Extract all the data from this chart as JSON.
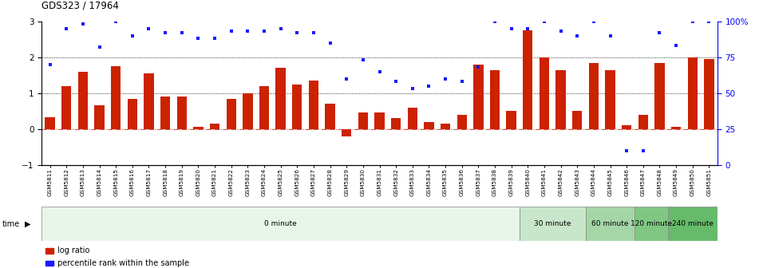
{
  "title": "GDS323 / 17964",
  "samples": [
    "GSM5811",
    "GSM5812",
    "GSM5813",
    "GSM5814",
    "GSM5815",
    "GSM5816",
    "GSM5817",
    "GSM5818",
    "GSM5819",
    "GSM5820",
    "GSM5821",
    "GSM5822",
    "GSM5823",
    "GSM5824",
    "GSM5825",
    "GSM5826",
    "GSM5827",
    "GSM5828",
    "GSM5829",
    "GSM5830",
    "GSM5831",
    "GSM5832",
    "GSM5833",
    "GSM5834",
    "GSM5835",
    "GSM5836",
    "GSM5837",
    "GSM5838",
    "GSM5839",
    "GSM5840",
    "GSM5841",
    "GSM5842",
    "GSM5843",
    "GSM5844",
    "GSM5845",
    "GSM5846",
    "GSM5847",
    "GSM5848",
    "GSM5849",
    "GSM5850",
    "GSM5851"
  ],
  "log_ratio": [
    0.32,
    1.2,
    1.6,
    0.65,
    1.75,
    0.85,
    1.55,
    0.9,
    0.9,
    0.05,
    0.15,
    0.85,
    1.0,
    1.2,
    1.7,
    1.25,
    1.35,
    0.7,
    -0.2,
    0.45,
    0.45,
    0.3,
    0.6,
    0.2,
    0.15,
    0.4,
    1.8,
    1.65,
    0.5,
    2.75,
    2.0,
    1.65,
    0.5,
    1.85,
    1.65,
    0.1,
    0.4,
    1.85,
    0.05,
    2.0,
    1.95
  ],
  "percentile_pct": [
    70,
    95,
    98,
    82,
    100,
    90,
    95,
    92,
    92,
    88,
    88,
    93,
    93,
    93,
    95,
    92,
    92,
    85,
    60,
    73,
    65,
    58,
    53,
    55,
    60,
    58,
    68,
    100,
    95,
    95,
    100,
    93,
    90,
    100,
    90,
    10,
    10,
    92,
    83,
    100,
    100
  ],
  "time_groups": [
    {
      "label": "0 minute",
      "start": 0,
      "end": 29,
      "color": "#e8f5e9"
    },
    {
      "label": "30 minute",
      "start": 29,
      "end": 33,
      "color": "#c8e6c9"
    },
    {
      "label": "60 minute",
      "start": 33,
      "end": 36,
      "color": "#a5d6a7"
    },
    {
      "label": "120 minute",
      "start": 36,
      "end": 38,
      "color": "#81c784"
    },
    {
      "label": "240 minute",
      "start": 38,
      "end": 41,
      "color": "#66bb6a"
    }
  ],
  "bar_color": "#cc2200",
  "dot_color": "#1a1aff",
  "ylim_left": [
    -1,
    3
  ],
  "ylim_right": [
    0,
    100
  ],
  "yticks_left": [
    -1,
    0,
    1,
    2,
    3
  ],
  "yticks_right": [
    0,
    25,
    50,
    75,
    100
  ],
  "background_color": "#ffffff"
}
